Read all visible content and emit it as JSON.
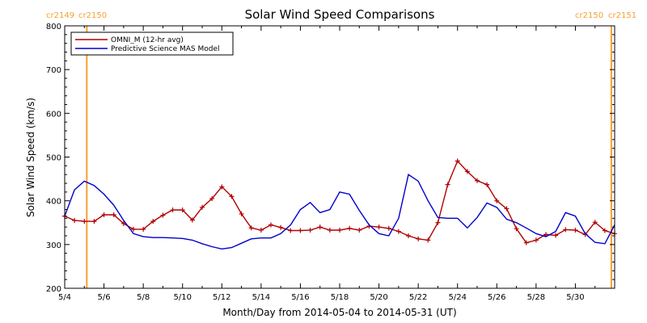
{
  "chart_data": {
    "type": "line",
    "title": "Solar Wind Speed Comparisons",
    "xlabel": "Month/Day from 2014-05-04 to 2014-05-31 (UT)",
    "ylabel": "Solar Wind Speed (km/s)",
    "ylim": [
      200,
      800
    ],
    "xlim": [
      "2014-05-04",
      "2014-05-31"
    ],
    "x_tick_labels": [
      "5/4",
      "5/6",
      "5/8",
      "5/10",
      "5/12",
      "5/14",
      "5/16",
      "5/18",
      "5/20",
      "5/22",
      "5/24",
      "5/26",
      "5/28",
      "5/30"
    ],
    "y_tick_labels": [
      "200",
      "300",
      "400",
      "500",
      "600",
      "700",
      "800"
    ],
    "y_ticks": [
      200,
      300,
      400,
      500,
      600,
      700,
      800
    ],
    "grid": false,
    "legend_position": "top-left",
    "carrington_markers": [
      {
        "date": "2014-05-05T03:00",
        "label_left": "cr2149",
        "label_right": "cr2150",
        "color": "#f5a030"
      },
      {
        "date": "2014-05-31T20:00",
        "label_left": "cr2150",
        "label_right": "cr2151",
        "color": "#f5a030"
      }
    ],
    "series": [
      {
        "name": "OMNI_M (12-hr avg)",
        "color": "#b00000",
        "markers": true,
        "points": [
          [
            "2014-05-04T00:00",
            365
          ],
          [
            "2014-05-04T12:00",
            355
          ],
          [
            "2014-05-05T00:00",
            353
          ],
          [
            "2014-05-05T12:00",
            353
          ],
          [
            "2014-05-06T00:00",
            368
          ],
          [
            "2014-05-06T12:00",
            368
          ],
          [
            "2014-05-07T00:00",
            348
          ],
          [
            "2014-05-07T12:00",
            335
          ],
          [
            "2014-05-08T00:00",
            335
          ],
          [
            "2014-05-08T12:00",
            353
          ],
          [
            "2014-05-09T00:00",
            367
          ],
          [
            "2014-05-09T12:00",
            379
          ],
          [
            "2014-05-10T00:00",
            379
          ],
          [
            "2014-05-10T12:00",
            356
          ],
          [
            "2014-05-11T00:00",
            385
          ],
          [
            "2014-05-11T12:00",
            405
          ],
          [
            "2014-05-12T00:00",
            432
          ],
          [
            "2014-05-12T12:00",
            410
          ],
          [
            "2014-05-13T00:00",
            370
          ],
          [
            "2014-05-13T12:00",
            338
          ],
          [
            "2014-05-14T00:00",
            333
          ],
          [
            "2014-05-14T12:00",
            345
          ],
          [
            "2014-05-15T00:00",
            339
          ],
          [
            "2014-05-15T12:00",
            332
          ],
          [
            "2014-05-16T00:00",
            332
          ],
          [
            "2014-05-16T12:00",
            333
          ],
          [
            "2014-05-17T00:00",
            340
          ],
          [
            "2014-05-17T12:00",
            333
          ],
          [
            "2014-05-18T00:00",
            333
          ],
          [
            "2014-05-18T12:00",
            337
          ],
          [
            "2014-05-19T00:00",
            333
          ],
          [
            "2014-05-19T12:00",
            342
          ],
          [
            "2014-05-20T00:00",
            340
          ],
          [
            "2014-05-20T12:00",
            337
          ],
          [
            "2014-05-21T00:00",
            330
          ],
          [
            "2014-05-21T12:00",
            320
          ],
          [
            "2014-05-22T00:00",
            313
          ],
          [
            "2014-05-22T12:00",
            310
          ],
          [
            "2014-05-23T00:00",
            350
          ],
          [
            "2014-05-23T12:00",
            437
          ],
          [
            "2014-05-24T00:00",
            491
          ],
          [
            "2014-05-24T12:00",
            467
          ],
          [
            "2014-05-25T00:00",
            446
          ],
          [
            "2014-05-25T12:00",
            437
          ],
          [
            "2014-05-26T00:00",
            400
          ],
          [
            "2014-05-26T12:00",
            382
          ],
          [
            "2014-05-27T00:00",
            336
          ],
          [
            "2014-05-27T12:00",
            304
          ],
          [
            "2014-05-28T00:00",
            310
          ],
          [
            "2014-05-28T12:00",
            323
          ],
          [
            "2014-05-29T00:00",
            321
          ],
          [
            "2014-05-29T12:00",
            334
          ],
          [
            "2014-05-30T00:00",
            333
          ],
          [
            "2014-05-30T12:00",
            323
          ],
          [
            "2014-05-31T00:00",
            351
          ],
          [
            "2014-05-31T12:00",
            332
          ],
          [
            "2014-06-01T00:00",
            325
          ]
        ]
      },
      {
        "name": "Predictive Science MAS Model",
        "color": "#0000cc",
        "markers": false,
        "points": [
          [
            "2014-05-04T00:00",
            365
          ],
          [
            "2014-05-04T12:00",
            425
          ],
          [
            "2014-05-05T00:00",
            445
          ],
          [
            "2014-05-05T12:00",
            435
          ],
          [
            "2014-05-06T00:00",
            415
          ],
          [
            "2014-05-06T12:00",
            390
          ],
          [
            "2014-05-07T00:00",
            355
          ],
          [
            "2014-05-07T12:00",
            325
          ],
          [
            "2014-05-08T00:00",
            318
          ],
          [
            "2014-05-08T12:00",
            316
          ],
          [
            "2014-05-09T00:00",
            316
          ],
          [
            "2014-05-09T12:00",
            315
          ],
          [
            "2014-05-10T00:00",
            314
          ],
          [
            "2014-05-10T12:00",
            310
          ],
          [
            "2014-05-11T00:00",
            302
          ],
          [
            "2014-05-11T12:00",
            295
          ],
          [
            "2014-05-12T00:00",
            290
          ],
          [
            "2014-05-12T12:00",
            293
          ],
          [
            "2014-05-13T00:00",
            303
          ],
          [
            "2014-05-13T12:00",
            313
          ],
          [
            "2014-05-14T00:00",
            315
          ],
          [
            "2014-05-14T12:00",
            315
          ],
          [
            "2014-05-15T00:00",
            325
          ],
          [
            "2014-05-15T12:00",
            345
          ],
          [
            "2014-05-16T00:00",
            380
          ],
          [
            "2014-05-16T12:00",
            396
          ],
          [
            "2014-05-17T00:00",
            373
          ],
          [
            "2014-05-17T12:00",
            380
          ],
          [
            "2014-05-18T00:00",
            420
          ],
          [
            "2014-05-18T12:00",
            415
          ],
          [
            "2014-05-19T00:00",
            378
          ],
          [
            "2014-05-19T12:00",
            345
          ],
          [
            "2014-05-20T00:00",
            325
          ],
          [
            "2014-05-20T12:00",
            320
          ],
          [
            "2014-05-21T00:00",
            360
          ],
          [
            "2014-05-21T12:00",
            460
          ],
          [
            "2014-05-22T00:00",
            445
          ],
          [
            "2014-05-22T12:00",
            400
          ],
          [
            "2014-05-23T00:00",
            362
          ],
          [
            "2014-05-23T12:00",
            360
          ],
          [
            "2014-05-24T00:00",
            360
          ],
          [
            "2014-05-24T12:00",
            338
          ],
          [
            "2014-05-25T00:00",
            362
          ],
          [
            "2014-05-25T12:00",
            395
          ],
          [
            "2014-05-26T00:00",
            385
          ],
          [
            "2014-05-26T12:00",
            358
          ],
          [
            "2014-05-27T00:00",
            350
          ],
          [
            "2014-05-27T12:00",
            338
          ],
          [
            "2014-05-28T00:00",
            325
          ],
          [
            "2014-05-28T12:00",
            318
          ],
          [
            "2014-05-29T00:00",
            330
          ],
          [
            "2014-05-29T12:00",
            373
          ],
          [
            "2014-05-30T00:00",
            365
          ],
          [
            "2014-05-30T12:00",
            325
          ],
          [
            "2014-05-31T00:00",
            305
          ],
          [
            "2014-05-31T12:00",
            302
          ],
          [
            "2014-06-01T00:00",
            345
          ]
        ]
      }
    ]
  }
}
